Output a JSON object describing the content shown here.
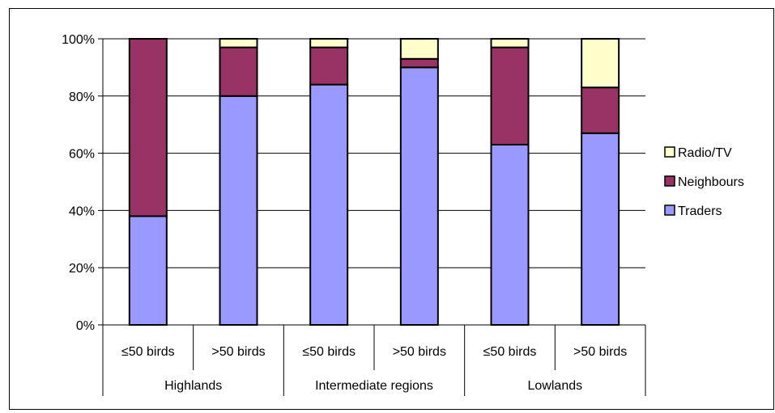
{
  "chart_data": {
    "type": "bar",
    "stacked": true,
    "percent_stacked": true,
    "title": "",
    "xlabel": "",
    "ylabel": "",
    "ylim": [
      0,
      100
    ],
    "y_ticks": [
      "0%",
      "20%",
      "40%",
      "60%",
      "80%",
      "100%"
    ],
    "grid": true,
    "legend_position": "right",
    "categories": [
      "≤50 birds",
      ">50 birds",
      "≤50 birds",
      ">50 birds",
      "≤50 birds",
      ">50 birds"
    ],
    "groups": [
      {
        "label": "Highlands",
        "span": 2
      },
      {
        "label": "Intermediate regions",
        "span": 2
      },
      {
        "label": "Lowlands",
        "span": 2
      }
    ],
    "series": [
      {
        "name": "Traders",
        "color": "#9999ff",
        "values": [
          38,
          80,
          84,
          90,
          63,
          67
        ]
      },
      {
        "name": "Neighbours",
        "color": "#993366",
        "values": [
          62,
          17,
          13,
          3,
          34,
          16
        ]
      },
      {
        "name": "Radio/TV",
        "color": "#ffffcc",
        "values": [
          0,
          3,
          3,
          7,
          3,
          17
        ]
      }
    ],
    "legend_order": [
      "Radio/TV",
      "Neighbours",
      "Traders"
    ]
  }
}
